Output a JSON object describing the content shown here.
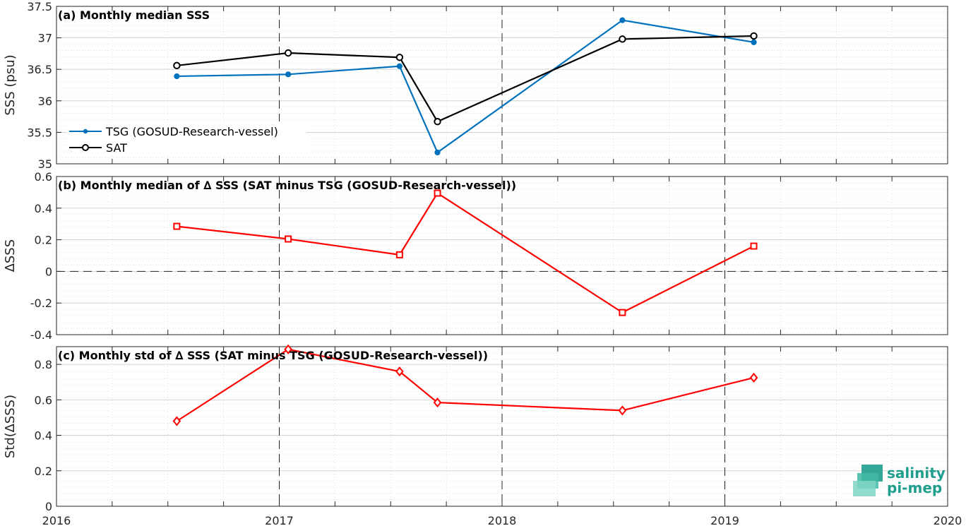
{
  "chart_data": [
    {
      "type": "line",
      "title": "(a) Monthly median SSS",
      "ylabel": "SSS (psu)",
      "xlim": [
        2016,
        2020
      ],
      "ylim": [
        35,
        37.5
      ],
      "yticks": [
        35,
        35.5,
        36,
        36.5,
        37,
        37.5
      ],
      "ytick_labels": [
        "35",
        "35.5",
        "36",
        "36.5",
        "37",
        "37.5"
      ],
      "grid": true,
      "legend": "lower-left",
      "series": [
        {
          "name": "TSG (GOSUD-Research-vessel)",
          "color": "#0072bd",
          "marker": "dot",
          "x": [
            2016.54,
            2017.04,
            2017.54,
            2017.71,
            2018.54,
            2019.13
          ],
          "values": [
            36.39,
            36.42,
            36.55,
            35.18,
            37.28,
            36.93
          ]
        },
        {
          "name": "SAT",
          "color": "#000000",
          "marker": "circle",
          "x": [
            2016.54,
            2017.04,
            2017.54,
            2017.71,
            2018.54,
            2019.13
          ],
          "values": [
            36.56,
            36.76,
            36.69,
            35.67,
            36.98,
            37.03
          ]
        }
      ]
    },
    {
      "type": "line",
      "title": "(b) Monthly median of ∆ SSS (SAT minus TSG (GOSUD-Research-vessel))",
      "ylabel": "∆SSS",
      "xlim": [
        2016,
        2020
      ],
      "ylim": [
        -0.4,
        0.6
      ],
      "yticks": [
        -0.4,
        -0.2,
        0,
        0.2,
        0.4,
        0.6
      ],
      "ytick_labels": [
        "-0.4",
        "-0.2",
        "0",
        "0.2",
        "0.4",
        "0.6"
      ],
      "grid": true,
      "zero_line": true,
      "series": [
        {
          "color": "#ff0000",
          "marker": "square",
          "x": [
            2016.54,
            2017.04,
            2017.54,
            2017.71,
            2018.54,
            2019.13
          ],
          "values": [
            0.285,
            0.205,
            0.105,
            0.495,
            -0.26,
            0.16
          ]
        }
      ]
    },
    {
      "type": "line",
      "title": "(c) Monthly std of ∆ SSS (SAT minus TSG (GOSUD-Research-vessel))",
      "ylabel": "Std(∆SSS)",
      "xlim": [
        2016,
        2020
      ],
      "ylim": [
        0,
        0.9
      ],
      "yticks": [
        0,
        0.2,
        0.4,
        0.6,
        0.8
      ],
      "ytick_labels": [
        "0",
        "0.2",
        "0.4",
        "0.6",
        "0.8"
      ],
      "xticks": [
        2016,
        2017,
        2018,
        2019,
        2020
      ],
      "xtick_labels": [
        "2016",
        "2017",
        "2018",
        "2019",
        "2020"
      ],
      "grid": true,
      "series": [
        {
          "color": "#ff0000",
          "marker": "diamond",
          "x": [
            2016.54,
            2017.04,
            2017.54,
            2017.71,
            2018.54,
            2019.13
          ],
          "values": [
            0.48,
            0.885,
            0.76,
            0.585,
            0.54,
            0.725
          ]
        }
      ]
    }
  ],
  "logo": {
    "line1": "salinity",
    "line2": "pi-mep",
    "color": "#1f9e8e"
  }
}
